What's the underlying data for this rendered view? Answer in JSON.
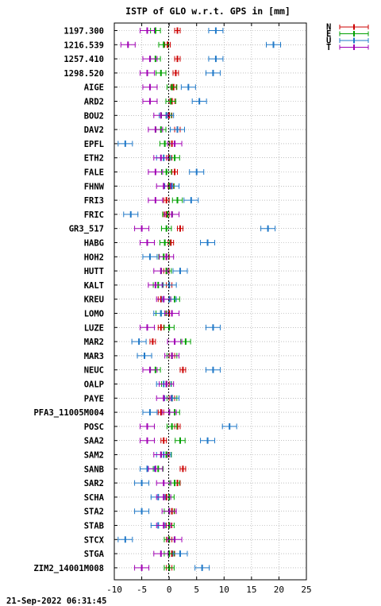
{
  "chart_data": {
    "type": "scatter",
    "title": "ISTP of GLO w.r.t. GPS in [mm]",
    "timestamp": "21-Sep-2022 06:31:45",
    "xlim": [
      -10,
      25
    ],
    "x_ticks": [
      -10,
      -5,
      0,
      5,
      10,
      15,
      20,
      25
    ],
    "x_tick_labels": [
      "-10",
      "-5",
      "0",
      "5",
      "10",
      "15",
      "20",
      "25"
    ],
    "grid": true,
    "legend_position": "top-right, outside plot",
    "series": [
      {
        "name": "N",
        "color": "#cc0000"
      },
      {
        "name": "E",
        "color": "#00a000"
      },
      {
        "name": "U",
        "color": "#1f78c8"
      },
      {
        "name": "T",
        "color": "#a000b4"
      }
    ],
    "categories": [
      "1197.300",
      "1216.539",
      "1257.410",
      "1298.520",
      "AIGE",
      "ARD2",
      "BOU2",
      "DAV2",
      "EPFL",
      "ETH2",
      "FALE",
      "FHNW",
      "FRI3",
      "FRIC",
      "GR3_517",
      "HABG",
      "HOH2",
      "HUTT",
      "KALT",
      "KREU",
      "LOMO",
      "LUZE",
      "MAR2",
      "MAR3",
      "NEUC",
      "OALP",
      "PAYE",
      "PFA3_11005M004",
      "POSC",
      "SAA2",
      "SAM2",
      "SANB",
      "SAR2",
      "SCHA",
      "STA2",
      "STAB",
      "STCX",
      "STGA",
      "ZIM2_14001M008"
    ],
    "values": {
      "N": [
        1.5,
        -0.3,
        1.5,
        1.2,
        0.8,
        0.5,
        0.0,
        1.5,
        0.5,
        0.0,
        1.0,
        0.3,
        -0.5,
        -0.5,
        2.0,
        0.3,
        -0.5,
        -0.5,
        0.0,
        -1.5,
        0.0,
        -1.5,
        -3.0,
        0.5,
        2.5,
        -0.5,
        0.5,
        -1.5,
        1.5,
        -1.0,
        -0.5,
        2.5,
        1.5,
        -0.5,
        0.5,
        0.0,
        0.0,
        0.5,
        0.0
      ],
      "E": [
        -2.5,
        -1.0,
        -2.5,
        -1.5,
        0.5,
        0.3,
        -0.5,
        -1.5,
        -0.8,
        1.0,
        -0.5,
        0.0,
        1.5,
        -0.3,
        -0.5,
        -0.8,
        -1.0,
        -0.5,
        -2.0,
        1.0,
        -1.5,
        0.0,
        3.0,
        0.5,
        -2.5,
        -0.5,
        0.5,
        1.0,
        0.5,
        2.0,
        -0.5,
        -2.0,
        1.0,
        0.0,
        0.0,
        0.0,
        0.0,
        0.0,
        0.0
      ],
      "U": [
        8.5,
        19.0,
        8.5,
        8.0,
        3.5,
        5.5,
        -0.5,
        1.5,
        -8.0,
        -1.0,
        5.0,
        0.5,
        4.0,
        -7.0,
        18.0,
        7.0,
        -3.5,
        2.0,
        0.0,
        0.0,
        -1.5,
        8.0,
        -5.5,
        -4.5,
        8.0,
        -1.0,
        0.5,
        -3.5,
        11.0,
        7.0,
        -1.0,
        -4.0,
        -5.0,
        -2.0,
        -5.0,
        -2.0,
        -8.0,
        2.0,
        6.0
      ],
      "T": [
        -4.0,
        -7.5,
        -3.5,
        -4.0,
        -3.5,
        -3.5,
        -1.5,
        -2.5,
        1.0,
        -1.5,
        -2.5,
        -1.0,
        -2.5,
        0.5,
        -5.0,
        -4.0,
        -0.5,
        -1.5,
        -2.5,
        -1.0,
        0.5,
        -4.0,
        1.0,
        0.5,
        -3.5,
        -0.5,
        -1.0,
        0.0,
        -4.0,
        -4.0,
        -1.5,
        -2.5,
        -1.0,
        -1.0,
        0.0,
        -1.0,
        1.0,
        -1.5,
        -5.0
      ]
    }
  }
}
